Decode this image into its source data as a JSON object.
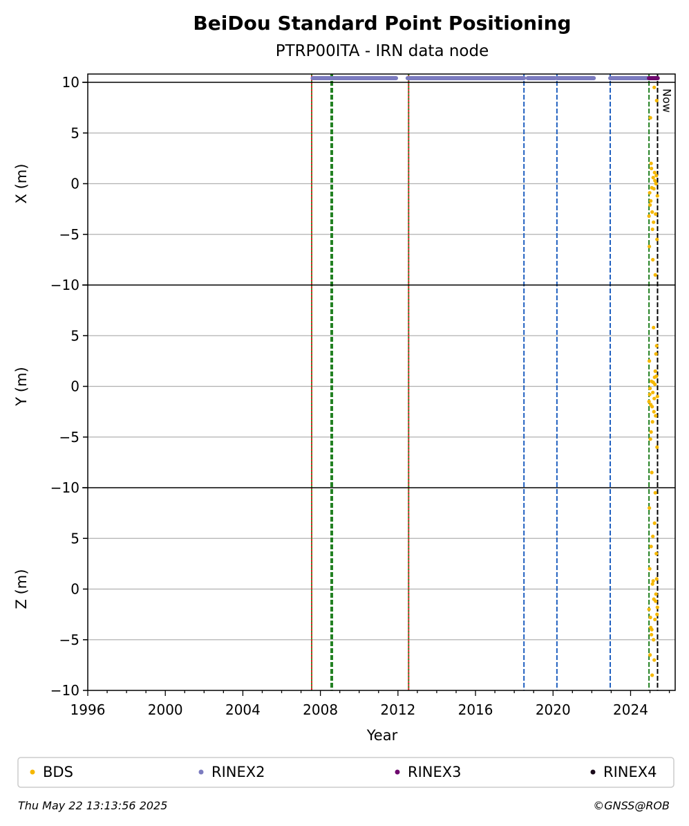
{
  "chart_data": {
    "type": "scatter",
    "title": "BeiDou Standard Point Positioning",
    "subtitle": "PTRP00ITA - IRN data node",
    "xlabel": "Year",
    "xlim": [
      1996,
      2026.3
    ],
    "x_ticks": [
      "1996",
      "2000",
      "2004",
      "2008",
      "2012",
      "2016",
      "2020",
      "2024"
    ],
    "now_label": "Now",
    "now_year": 2025.39,
    "panels": [
      {
        "name": "x",
        "ylabel": "X (m)",
        "ylim": [
          -10,
          10
        ],
        "y_ticks": [
          "10",
          "5",
          "0",
          "−5",
          "−10"
        ]
      },
      {
        "name": "y",
        "ylabel": "Y (m)",
        "ylim": [
          -10,
          10
        ],
        "y_ticks": [
          "5",
          "0",
          "−5",
          "−10"
        ]
      },
      {
        "name": "z",
        "ylabel": "Z (m)",
        "ylim": [
          -10,
          10
        ],
        "y_ticks": [
          "5",
          "0",
          "−5",
          "−10"
        ]
      }
    ],
    "event_lines": [
      {
        "year": 2007.55,
        "style": "red-green-dotted"
      },
      {
        "year": 2008.55,
        "style": "green-dashed"
      },
      {
        "year": 2008.62,
        "style": "green-dashed"
      },
      {
        "year": 2012.55,
        "style": "red-green-dotted"
      },
      {
        "year": 2018.5,
        "style": "blue-dashed"
      },
      {
        "year": 2020.2,
        "style": "blue-dashed"
      },
      {
        "year": 2022.95,
        "style": "blue-dashed"
      },
      {
        "year": 2024.95,
        "style": "green-dashed"
      }
    ],
    "rinex_bars": [
      {
        "series": "RINEX2",
        "start": 2007.6,
        "end": 2008.5
      },
      {
        "series": "RINEX2",
        "start": 2008.55,
        "end": 2011.9
      },
      {
        "series": "RINEX2",
        "start": 2012.5,
        "end": 2018.5
      },
      {
        "series": "RINEX2",
        "start": 2018.7,
        "end": 2020.1
      },
      {
        "series": "RINEX2",
        "start": 2020.2,
        "end": 2022.1
      },
      {
        "series": "RINEX2",
        "start": 2022.95,
        "end": 2024.9
      },
      {
        "series": "RINEX3",
        "start": 2024.95,
        "end": 2025.4
      }
    ],
    "series": [
      {
        "name": "BDS",
        "color": "#f5b700",
        "x_range": [
          2024.95,
          2025.4
        ],
        "x_values": [
          -3.2,
          1.5,
          -0.5,
          0.8,
          -2.1,
          -4.5,
          0.3,
          -1.2,
          2.0,
          -3.8,
          0.0,
          -0.9,
          -2.8,
          1.1,
          -5.5,
          -1.7,
          0.6,
          -3.0,
          -6.2,
          -0.4,
          9.5,
          8.2,
          6.5,
          -7.5,
          -9.0
        ],
        "y_values": [
          -1.5,
          0.5,
          -2.5,
          1.0,
          -0.2,
          -3.5,
          0.2,
          -1.0,
          -4.5,
          5.8,
          3.2,
          -0.8,
          -2.0,
          0.9,
          -6.0,
          -1.8,
          0.4,
          -2.9,
          2.5,
          -8.5,
          -1.2,
          4.0,
          -5.2,
          -0.6,
          1.5
        ],
        "z_values": [
          -2.0,
          -4.5,
          -1.0,
          3.5,
          -6.5,
          0.5,
          -3.0,
          -1.8,
          4.2,
          -5.0,
          -0.5,
          2.0,
          -8.5,
          6.5,
          -2.5,
          -3.8,
          0.8,
          -1.2,
          8.0,
          -4.0,
          -7.0,
          1.0,
          -2.8,
          5.2,
          9.5
        ]
      },
      {
        "name": "RINEX2",
        "color": "#7b7bbf"
      },
      {
        "name": "RINEX3",
        "color": "#6e0a6e"
      },
      {
        "name": "RINEX4",
        "color": "#1a0a1a"
      }
    ],
    "legend_position": "bottom",
    "grid": true
  },
  "footer": {
    "timestamp": "Thu May 22 13:13:56 2025",
    "credit": "©GNSS@ROB"
  }
}
